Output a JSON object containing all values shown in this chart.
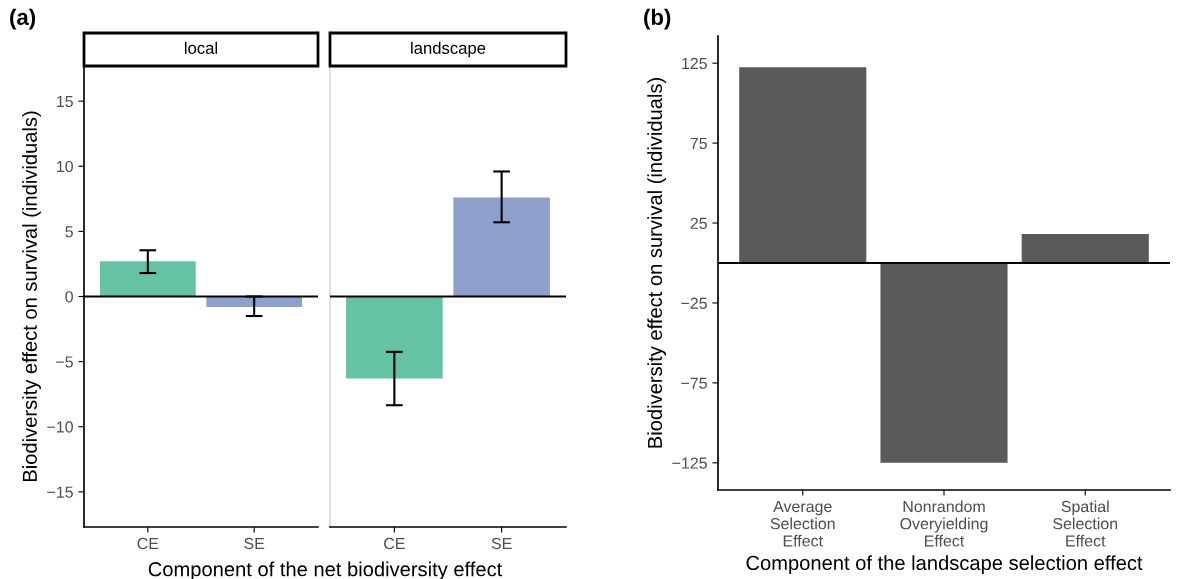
{
  "chart_data": [
    {
      "type": "bar",
      "title": "local",
      "categories": [
        "CE",
        "SE"
      ],
      "values": [
        2.7,
        -0.8
      ],
      "colors": [
        "#66c2a5",
        "#8da0cb"
      ],
      "errors": [
        [
          1.8,
          3.55
        ],
        [
          -1.5,
          0
        ]
      ],
      "ylim": [
        -17.7,
        17.7
      ],
      "yticks": [
        -15,
        -10,
        -5,
        0,
        5,
        10,
        15
      ],
      "ylabel": "Biodiversity effect on survival (individuals)",
      "xlabel": "Component of the net biodiversity effect",
      "ref_lines": [
        {
          "axis": "y",
          "value": 0,
          "color": "#000000"
        }
      ],
      "annotations": [
        "(a)"
      ],
      "grid": false,
      "legend": false
    },
    {
      "type": "bar",
      "title": "landscape",
      "categories": [
        "CE",
        "SE"
      ],
      "values": [
        -6.3,
        7.6
      ],
      "colors": [
        "#66c2a5",
        "#8da0cb"
      ],
      "errors": [
        [
          -8.35,
          -4.25
        ],
        [
          5.7,
          9.6
        ]
      ],
      "ylim": [
        -17.7,
        17.7
      ],
      "tick_labels": "x",
      "ref_lines": [
        {
          "axis": "y",
          "value": 0,
          "color": "#000000"
        }
      ],
      "grid": false,
      "legend": false
    },
    {
      "type": "bar",
      "categories": [
        "Average\nSelection\nEffect",
        "Nonrandom\nOveryielding\nEffect",
        "Spatial\nSelection\nEffect"
      ],
      "values": [
        122.4,
        -125,
        18.2
      ],
      "colors": [
        "#595959",
        "#595959",
        "#595959"
      ],
      "ylim": [
        -142,
        142
      ],
      "yticks": [
        -125,
        -75,
        -25,
        25,
        75,
        125
      ],
      "ylabel": "Biodiversity effect on survival (individuals)",
      "xlabel": "Component of the landscape selection effect",
      "ref_lines": [
        {
          "axis": "y",
          "value": 0,
          "color": "#000000"
        }
      ],
      "annotations": [
        "(b)"
      ],
      "grid": false,
      "legend": false
    }
  ]
}
